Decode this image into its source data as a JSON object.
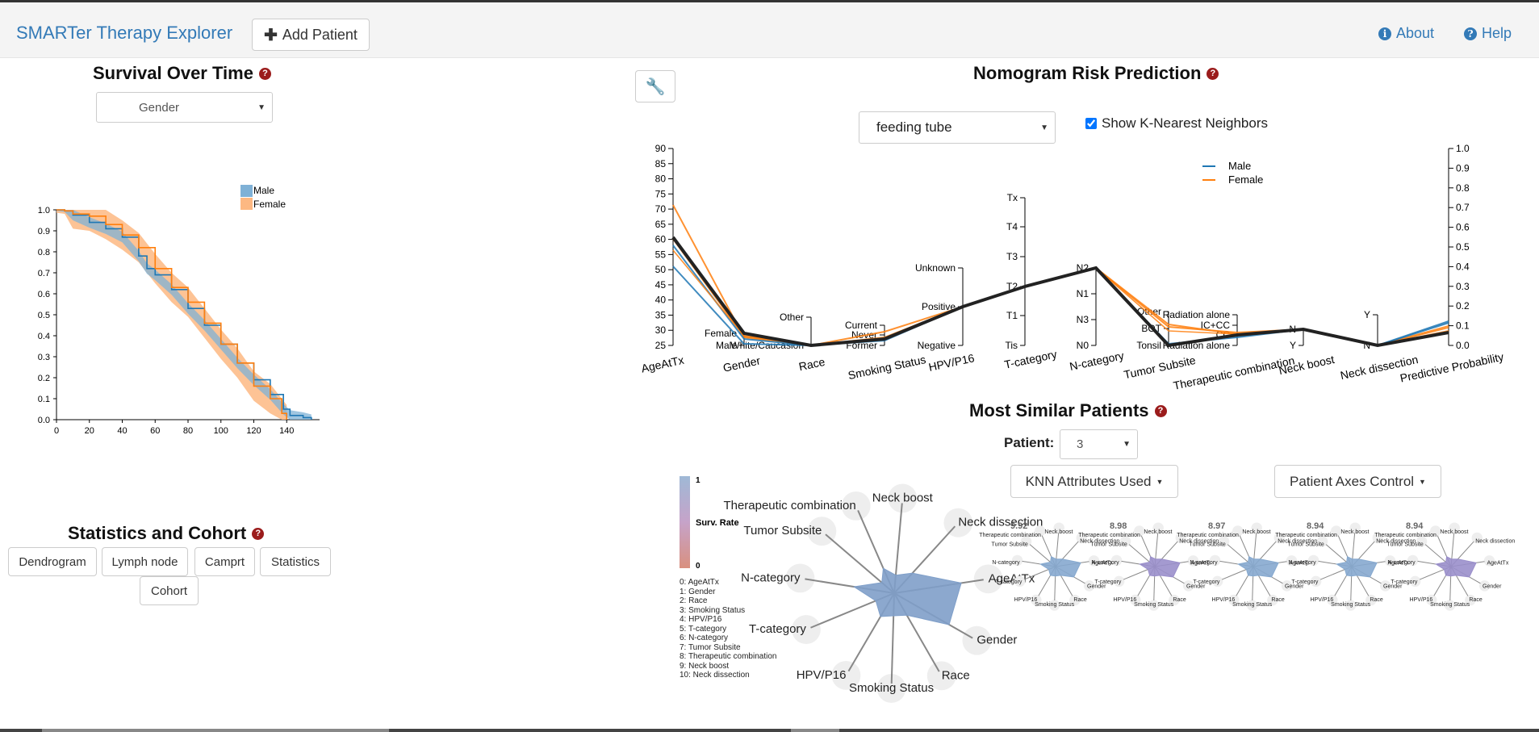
{
  "app": {
    "title": "SMARTer Therapy Explorer",
    "add_patient": "Add Patient",
    "about": "About",
    "help": "Help"
  },
  "survival": {
    "title": "Survival Over Time",
    "group_select": "Gender",
    "legend": [
      "Male",
      "Female"
    ],
    "colors": {
      "male": "#1f77b4",
      "female": "#ff7f0e",
      "male_band": "#7fb1d6",
      "female_band": "#fdb882"
    }
  },
  "stats": {
    "title": "Statistics and Cohort",
    "buttons": [
      "Dendrogram",
      "Lymph node",
      "Camprt",
      "Statistics",
      "Cohort"
    ]
  },
  "nomogram": {
    "title": "Nomogram Risk Prediction",
    "outcome_select": "feeding tube",
    "knn_label": "Show K-Nearest Neighbors",
    "knn_checked": true,
    "legend": [
      "Male",
      "Female"
    ],
    "axes": [
      "AgeAtTx",
      "Gender",
      "Race",
      "Smoking Status",
      "HPV/P16",
      "T-category",
      "N-category",
      "Tumor Subsite",
      "Therapeutic combination",
      "Neck boost",
      "Neck dissection",
      "Predictive Probability"
    ],
    "age_ticks": [
      "90",
      "85",
      "80",
      "75",
      "70",
      "65",
      "60",
      "55",
      "50",
      "45",
      "40",
      "35",
      "30",
      "25"
    ],
    "gender_ticks": [
      "Female",
      "Male"
    ],
    "race_ticks": [
      "Other",
      "White/Caucasion"
    ],
    "smoking_ticks": [
      "Current",
      "Never",
      "Former"
    ],
    "hpv_ticks": [
      "Unknown",
      "Positive",
      "Negative"
    ],
    "tcat_ticks": [
      "Tx",
      "T4",
      "T3",
      "T2",
      "T1",
      "Tis"
    ],
    "ncat_ticks": [
      "N2",
      "N1",
      "N3",
      "N0"
    ],
    "subsite_ticks": [
      "Other",
      "BOT",
      "Tonsil"
    ],
    "therapy_ticks": [
      "Radiation alone",
      "IC+CC",
      "CC",
      "Radiation alone"
    ],
    "neckboost_ticks": [
      "N",
      "Y"
    ],
    "neckdiss_ticks": [
      "Y",
      "N"
    ],
    "prob_ticks": [
      "1.0",
      "0.9",
      "0.8",
      "0.7",
      "0.6",
      "0.5",
      "0.4",
      "0.3",
      "0.2",
      "0.1",
      "0.0"
    ]
  },
  "similar": {
    "title": "Most Similar Patients",
    "patient_label": "Patient:",
    "patient_value": "3",
    "knn_attrs_button": "KNN Attributes Used",
    "axes_control_button": "Patient Axes Control",
    "color_scale": {
      "max": "1",
      "label": "Surv. Rate",
      "min": "0"
    },
    "attr_list": [
      "0: AgeAtTx",
      "1: Gender",
      "2: Race",
      "3: Smoking Status",
      "4: HPV/P16",
      "5: T-category",
      "6: N-category",
      "7: Tumor Subsite",
      "8: Therapeutic combination",
      "9: Neck boost",
      "10: Neck dissection"
    ],
    "radar_labels": [
      "AgeAtTx",
      "Gender",
      "Race",
      "Smoking Status",
      "HPV/P16",
      "T-category",
      "N-category",
      "Tumor Subsite",
      "Therapeutic combination",
      "Neck boost",
      "Neck dissection"
    ],
    "neighbor_scores": [
      "9.92",
      "8.98",
      "8.97",
      "8.94",
      "8.94"
    ]
  }
}
